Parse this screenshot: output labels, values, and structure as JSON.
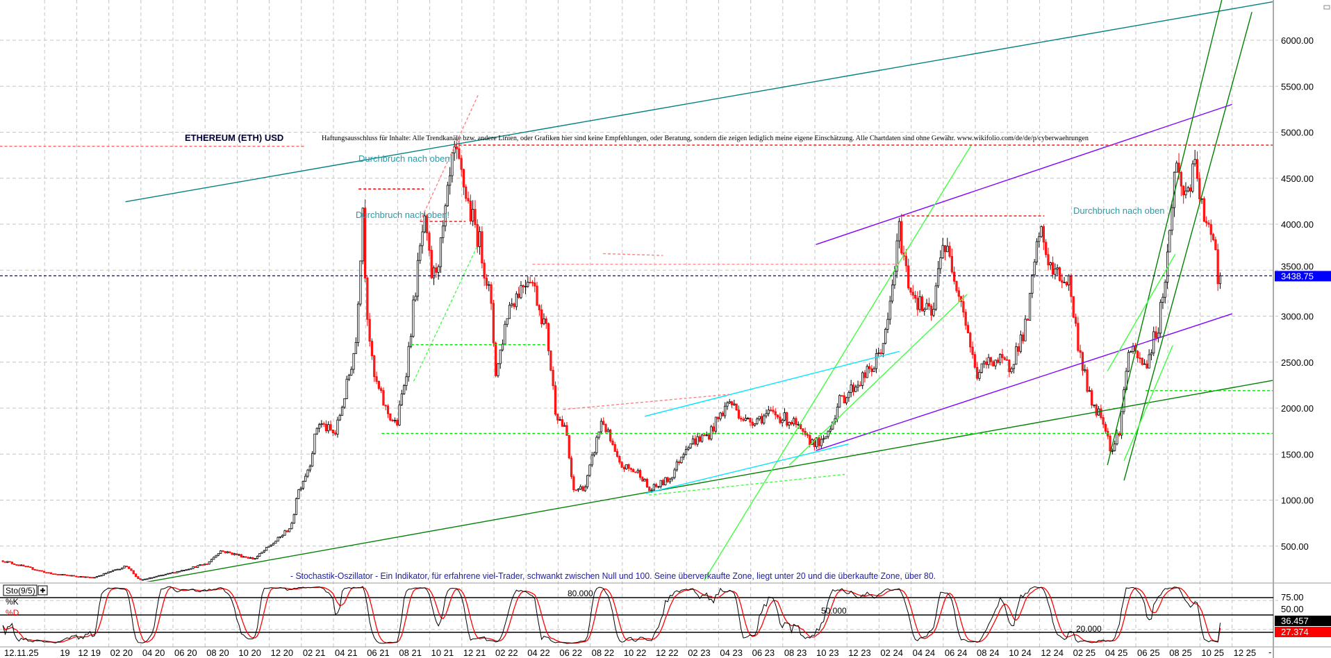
{
  "chart_data": {
    "type": "candlestick",
    "title": "ETHEREUM (ETH) USD",
    "disclaimer": "Haftungsausschluss für Inhalte: Alle Trendkanäle bzw. andere Linien, oder Grafiken hier sind keine Empfehlungen, oder Beratung, sondern die zeigen lediglich meine eigene Einschätzung. Alle Chartdaten sind ohne Gewähr.  www.wikifolio.com/de/de/p/cyberwaehrungen",
    "ylim": [
      0,
      6400
    ],
    "grid": true,
    "y_ticks": [
      "6000.00",
      "5500.00",
      "5000.00",
      "4500.00",
      "4000.00",
      "3500.00",
      "3000.00",
      "2500.00",
      "2000.00",
      "1500.00",
      "1000.00",
      "500.00"
    ],
    "x_first_label": "12.11.25",
    "x_ticks": [
      {
        "label": "19",
        "date": "2019-10-01"
      },
      {
        "label": "12 19",
        "date": "2019-12-01"
      },
      {
        "label": "02 20",
        "date": "2020-02-01"
      },
      {
        "label": "04 20",
        "date": "2020-04-01"
      },
      {
        "label": "06 20",
        "date": "2020-06-01"
      },
      {
        "label": "08 20",
        "date": "2020-08-01"
      },
      {
        "label": "10 20",
        "date": "2020-10-01"
      },
      {
        "label": "12 20",
        "date": "2020-12-01"
      },
      {
        "label": "02 21",
        "date": "2021-02-01"
      },
      {
        "label": "04 21",
        "date": "2021-04-01"
      },
      {
        "label": "06 21",
        "date": "2021-06-01"
      },
      {
        "label": "08 21",
        "date": "2021-08-01"
      },
      {
        "label": "10 21",
        "date": "2021-10-01"
      },
      {
        "label": "12 21",
        "date": "2021-12-01"
      },
      {
        "label": "02 22",
        "date": "2022-02-01"
      },
      {
        "label": "04 22",
        "date": "2022-04-01"
      },
      {
        "label": "06 22",
        "date": "2022-06-01"
      },
      {
        "label": "08 22",
        "date": "2022-08-01"
      },
      {
        "label": "10 22",
        "date": "2022-10-01"
      },
      {
        "label": "12 22",
        "date": "2022-12-01"
      },
      {
        "label": "02 23",
        "date": "2023-02-01"
      },
      {
        "label": "04 23",
        "date": "2023-04-01"
      },
      {
        "label": "06 23",
        "date": "2023-06-01"
      },
      {
        "label": "08 23",
        "date": "2023-08-01"
      },
      {
        "label": "10 23",
        "date": "2023-10-01"
      },
      {
        "label": "12 23",
        "date": "2023-12-01"
      },
      {
        "label": "02 24",
        "date": "2024-02-01"
      },
      {
        "label": "04 24",
        "date": "2024-04-01"
      },
      {
        "label": "06 24",
        "date": "2024-06-01"
      },
      {
        "label": "08 24",
        "date": "2024-08-01"
      },
      {
        "label": "10 24",
        "date": "2024-10-01"
      },
      {
        "label": "12 24",
        "date": "2024-12-01"
      },
      {
        "label": "02 25",
        "date": "2025-02-01"
      },
      {
        "label": "04 25",
        "date": "2025-04-01"
      },
      {
        "label": "06 25",
        "date": "2025-06-01"
      },
      {
        "label": "08 25",
        "date": "2025-08-01"
      },
      {
        "label": "10 25",
        "date": "2025-10-01"
      },
      {
        "label": "12 25",
        "date": "2025-12-01"
      }
    ],
    "axis_end_label": "-",
    "last_price": {
      "label": "3438.75",
      "value": 3438.75,
      "color": "#0000ff"
    },
    "series": [
      {
        "date": "2019-07-13",
        "close": 340
      },
      {
        "date": "2019-10-12",
        "close": 200
      },
      {
        "date": "2020-01-01",
        "close": 155
      },
      {
        "date": "2020-03-05",
        "close": 285
      },
      {
        "date": "2020-03-28",
        "close": 127
      },
      {
        "date": "2020-05-24",
        "close": 200
      },
      {
        "date": "2020-08-05",
        "close": 310
      },
      {
        "date": "2020-08-29",
        "close": 450
      },
      {
        "date": "2020-11-03",
        "close": 360
      },
      {
        "date": "2020-12-20",
        "close": 590
      },
      {
        "date": "2021-01-14",
        "close": 730
      },
      {
        "date": "2021-01-22",
        "close": 1055
      },
      {
        "date": "2021-02-16",
        "close": 1380
      },
      {
        "date": "2021-03-02",
        "close": 1850
      },
      {
        "date": "2021-04-04",
        "close": 1710
      },
      {
        "date": "2021-04-27",
        "close": 2270
      },
      {
        "date": "2021-05-13",
        "close": 2730
      },
      {
        "date": "2021-05-26",
        "close": 4220
      },
      {
        "date": "2021-06-02",
        "close": 3200
      },
      {
        "date": "2021-06-15",
        "close": 2360
      },
      {
        "date": "2021-07-09",
        "close": 1985
      },
      {
        "date": "2021-07-29",
        "close": 1800
      },
      {
        "date": "2021-08-18",
        "close": 2450
      },
      {
        "date": "2021-09-04",
        "close": 3290
      },
      {
        "date": "2021-09-20",
        "close": 4030
      },
      {
        "date": "2021-10-06",
        "close": 3380
      },
      {
        "date": "2021-10-22",
        "close": 3750
      },
      {
        "date": "2021-11-16",
        "close": 4770
      },
      {
        "date": "2021-12-02",
        "close": 4490
      },
      {
        "date": "2021-12-17",
        "close": 4120
      },
      {
        "date": "2022-01-03",
        "close": 3840
      },
      {
        "date": "2022-01-24",
        "close": 3200
      },
      {
        "date": "2022-02-05",
        "close": 2360
      },
      {
        "date": "2022-02-28",
        "close": 3100
      },
      {
        "date": "2022-04-08",
        "close": 3470
      },
      {
        "date": "2022-05-10",
        "close": 2820
      },
      {
        "date": "2022-05-26",
        "close": 1985
      },
      {
        "date": "2022-06-17",
        "close": 1710
      },
      {
        "date": "2022-06-28",
        "close": 1100
      },
      {
        "date": "2022-07-22",
        "close": 1150
      },
      {
        "date": "2022-08-23",
        "close": 1890
      },
      {
        "date": "2022-09-25",
        "close": 1380
      },
      {
        "date": "2022-11-05",
        "close": 1290
      },
      {
        "date": "2022-11-21",
        "close": 1100
      },
      {
        "date": "2023-01-01",
        "close": 1240
      },
      {
        "date": "2023-02-02",
        "close": 1610
      },
      {
        "date": "2023-03-12",
        "close": 1710
      },
      {
        "date": "2023-04-21",
        "close": 2080
      },
      {
        "date": "2023-05-23",
        "close": 1850
      },
      {
        "date": "2023-07-11",
        "close": 1940
      },
      {
        "date": "2023-08-20",
        "close": 1850
      },
      {
        "date": "2023-09-14",
        "close": 1660
      },
      {
        "date": "2023-10-16",
        "close": 1610
      },
      {
        "date": "2023-11-18",
        "close": 2080
      },
      {
        "date": "2023-12-20",
        "close": 2270
      },
      {
        "date": "2024-01-21",
        "close": 2450
      },
      {
        "date": "2024-02-15",
        "close": 2820
      },
      {
        "date": "2024-03-09",
        "close": 3940
      },
      {
        "date": "2024-03-25",
        "close": 3380
      },
      {
        "date": "2024-04-19",
        "close": 3100
      },
      {
        "date": "2024-05-12",
        "close": 3000
      },
      {
        "date": "2024-05-28",
        "close": 3840
      },
      {
        "date": "2024-06-22",
        "close": 3470
      },
      {
        "date": "2024-07-08",
        "close": 3100
      },
      {
        "date": "2024-08-02",
        "close": 2360
      },
      {
        "date": "2024-09-03",
        "close": 2540
      },
      {
        "date": "2024-10-05",
        "close": 2450
      },
      {
        "date": "2024-11-07",
        "close": 2910
      },
      {
        "date": "2024-12-01",
        "close": 3940
      },
      {
        "date": "2024-12-25",
        "close": 3470
      },
      {
        "date": "2025-01-26",
        "close": 3380
      },
      {
        "date": "2025-02-12",
        "close": 2730
      },
      {
        "date": "2025-03-06",
        "close": 2080
      },
      {
        "date": "2025-03-30",
        "close": 1890
      },
      {
        "date": "2025-04-16",
        "close": 1520
      },
      {
        "date": "2025-05-02",
        "close": 1800
      },
      {
        "date": "2025-05-17",
        "close": 2640
      },
      {
        "date": "2025-06-19",
        "close": 2450
      },
      {
        "date": "2025-07-13",
        "close": 2910
      },
      {
        "date": "2025-07-29",
        "close": 3560
      },
      {
        "date": "2025-08-15",
        "close": 4680
      },
      {
        "date": "2025-09-01",
        "close": 4310
      },
      {
        "date": "2025-09-24",
        "close": 4590
      },
      {
        "date": "2025-10-10",
        "close": 3940
      },
      {
        "date": "2025-10-26",
        "close": 3940
      },
      {
        "date": "2025-11-07",
        "close": 3290
      },
      {
        "date": "2025-11-12",
        "close": 3438.75
      }
    ],
    "trendlines": [
      {
        "from": [
          "2020-03-02",
          4244
        ],
        "to": [
          "2026-02-17",
          6418
        ],
        "color": "#008080",
        "dash": false
      },
      {
        "from": [
          "2020-03-05",
          71
        ],
        "to": [
          "2026-02-17",
          2301
        ],
        "color": "#008000",
        "dash": false
      },
      {
        "from": [
          "2023-10-03",
          3779
        ],
        "to": [
          "2025-12-01",
          5303
        ],
        "color": "#8000ff",
        "dash": false
      },
      {
        "from": [
          "2023-10-03",
          1539
        ],
        "to": [
          "2025-12-01",
          3026
        ],
        "color": "#8000ff",
        "dash": false
      },
      {
        "from": [
          "2023-03-04",
          126
        ],
        "to": [
          "2024-07-24",
          4866
        ],
        "color": "#40ff40",
        "dash": false
      },
      {
        "from": [
          "2023-08-13",
          1381
        ],
        "to": [
          "2024-07-16",
          3240
        ],
        "color": "#40ff40",
        "dash": false
      },
      {
        "from": [
          "2022-11-13",
          1911
        ],
        "to": [
          "2024-03-09",
          2617
        ],
        "color": "#00e5ff",
        "dash": false
      },
      {
        "from": [
          "2022-11-15",
          1074
        ],
        "to": [
          "2023-12-04",
          1610
        ],
        "color": "#00e5ff",
        "dash": false
      },
      {
        "from": [
          "2025-04-08",
          1381
        ],
        "to": [
          "2025-11-12",
          6446
        ],
        "color": "#008000",
        "dash": false
      },
      {
        "from": [
          "2025-05-09",
          1214
        ],
        "to": [
          "2026-01-08",
          6307
        ],
        "color": "#008000",
        "dash": false
      },
      {
        "from": [
          "2025-04-08",
          2403
        ],
        "to": [
          "2025-08-15",
          3677
        ],
        "color": "#40ff40",
        "dash": false
      },
      {
        "from": [
          "2025-05-09",
          1428
        ],
        "to": [
          "2025-08-10",
          2682
        ],
        "color": "#40ff40",
        "dash": false
      },
      {
        "from": [
          "2021-09-01",
          2292
        ],
        "to": [
          "2021-12-29",
          3751
        ],
        "color": "#40ff40",
        "dash": true
      },
      {
        "from": [
          "2021-09-13",
          4030
        ],
        "to": [
          "2022-01-03",
          5424
        ],
        "color": "#ff8080",
        "dash": true
      },
      {
        "from": [
          "2022-06-10",
          1985
        ],
        "to": [
          "2023-04-21",
          2150
        ],
        "color": "#ff8080",
        "dash": true
      },
      {
        "from": [
          "2022-08-25",
          3680
        ],
        "to": [
          "2022-12-17",
          3660
        ],
        "color": "#ff8080",
        "dash": true
      },
      {
        "from": [
          "2022-11-21",
          1055
        ],
        "to": [
          "2023-11-27",
          1280
        ],
        "color": "#40ff40",
        "dash": true
      },
      {
        "from": [
          "2019-07-07",
          4847
        ],
        "to": [
          "2021-02-08",
          4847
        ],
        "color": "#ff6060",
        "dash": true
      },
      {
        "from": [
          "2021-05-18",
          4383
        ],
        "to": [
          "2021-09-20",
          4383
        ],
        "color": "#ff0000",
        "dash": true
      },
      {
        "from": [
          "2021-09-13",
          4030
        ],
        "to": [
          "2021-12-08",
          4030
        ],
        "color": "#ff0000",
        "dash": true
      },
      {
        "from": [
          "2021-11-16",
          4860
        ],
        "to": [
          "2026-02-17",
          4860
        ],
        "color": "#ff0000",
        "dash": true
      },
      {
        "from": [
          "2024-03-14",
          4090
        ],
        "to": [
          "2024-12-10",
          4090
        ],
        "color": "#ff0000",
        "dash": true
      },
      {
        "from": [
          "2022-04-13",
          3565
        ],
        "to": [
          "2024-03-09",
          3565
        ],
        "color": "#ff9090",
        "dash": true
      },
      {
        "from": [
          "2021-07-01",
          1725
        ],
        "to": [
          "2026-02-17",
          1725
        ],
        "color": "#00e000",
        "dash": true
      },
      {
        "from": [
          "2021-08-26",
          2690
        ],
        "to": [
          "2022-05-10",
          2690
        ],
        "color": "#00e000",
        "dash": true
      },
      {
        "from": [
          "2021-01-01",
          100
        ],
        "to": [
          "2026-02-17",
          100
        ],
        "color": "#00e000",
        "dash": true
      },
      {
        "from": [
          "2025-06-19",
          2190
        ],
        "to": [
          "2026-02-17",
          2190
        ],
        "color": "#00e000",
        "dash": true
      }
    ],
    "annotations": [
      "Durchbruch nach oben!",
      "Durchbruch nach oben!",
      "Durchbruch nach oben"
    ],
    "indicator_note": "- Stochastik-Oszillator - Ein Indikator, für erfahrene viel-Trader, schwankt zwischen Null und 100. Seine überverkaufte Zone, liegt unter 20 und die überkaufte Zone, über 80.",
    "stochastic": {
      "name": "Sto(9/5)",
      "k_label": "%K",
      "d_label": "%D",
      "k_color": "#000000",
      "d_color": "#ff0000",
      "levels": [
        {
          "value": 80,
          "label": "80.000"
        },
        {
          "value": 50,
          "label": "50.000"
        },
        {
          "value": 20,
          "label": "20.000"
        }
      ],
      "y_ticks": [
        "75.00",
        "50.00"
      ],
      "last_k": "36.457",
      "last_d": "27.374"
    }
  }
}
